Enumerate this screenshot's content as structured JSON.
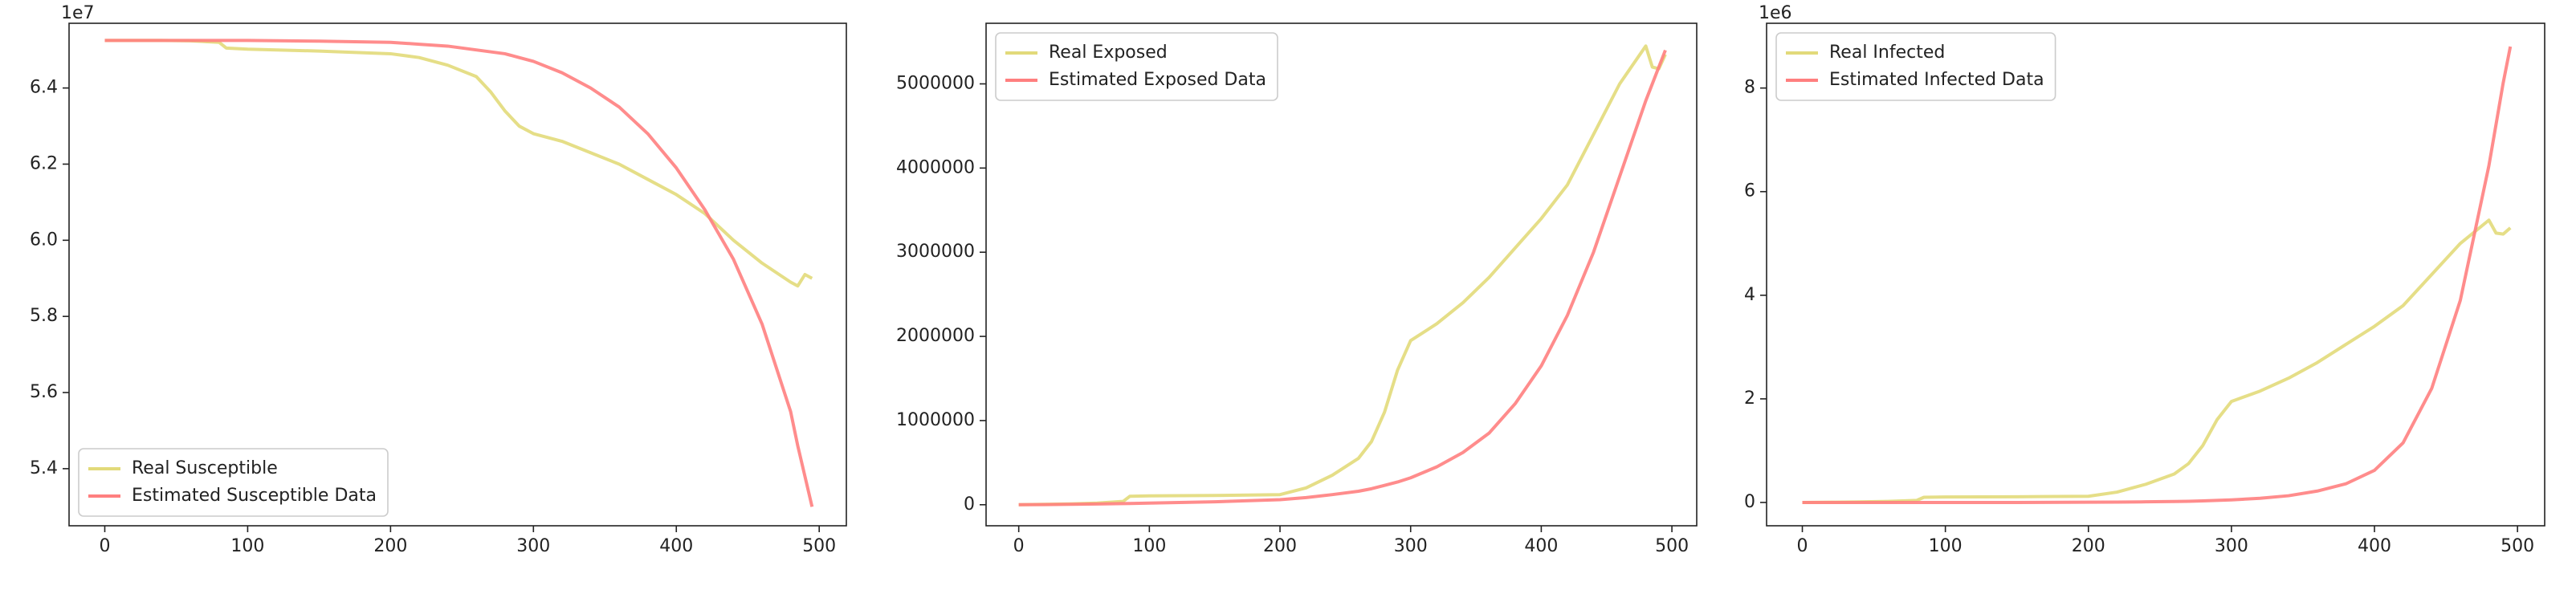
{
  "chart_data": [
    {
      "type": "line",
      "y_offset_label": "1e7",
      "x": [
        0,
        20,
        40,
        60,
        80,
        85,
        100,
        150,
        200,
        220,
        240,
        260,
        270,
        280,
        290,
        300,
        320,
        340,
        360,
        380,
        400,
        420,
        440,
        460,
        480,
        485,
        490,
        495
      ],
      "xlim": [
        -25,
        519
      ],
      "xticks": [
        0,
        100,
        200,
        300,
        400,
        500
      ],
      "ylim": [
        5.25,
        6.57
      ],
      "yticks": [
        {
          "value": 5.4,
          "label": "5.4"
        },
        {
          "value": 5.6,
          "label": "5.6"
        },
        {
          "value": 5.8,
          "label": "5.8"
        },
        {
          "value": 6.0,
          "label": "6.0"
        },
        {
          "value": 6.2,
          "label": "6.2"
        },
        {
          "value": 6.4,
          "label": "6.4"
        }
      ],
      "legend": "lower left",
      "series": [
        {
          "name": "Real Susceptible",
          "color": "#e2da7a",
          "values": [
            6.525,
            6.525,
            6.525,
            6.524,
            6.52,
            6.505,
            6.502,
            6.497,
            6.49,
            6.48,
            6.46,
            6.43,
            6.39,
            6.34,
            6.3,
            6.28,
            6.26,
            6.23,
            6.2,
            6.16,
            6.12,
            6.07,
            6.0,
            5.94,
            5.89,
            5.88,
            5.91,
            5.9
          ]
        },
        {
          "name": "Estimated Susceptible Data",
          "color": "#ff7f7f",
          "values": [
            6.525,
            6.525,
            6.525,
            6.525,
            6.525,
            6.525,
            6.525,
            6.523,
            6.52,
            6.515,
            6.51,
            6.5,
            6.495,
            6.49,
            6.48,
            6.47,
            6.44,
            6.4,
            6.35,
            6.28,
            6.19,
            6.08,
            5.95,
            5.78,
            5.55,
            5.46,
            5.38,
            5.3
          ]
        }
      ]
    },
    {
      "type": "line",
      "x": [
        0,
        20,
        40,
        60,
        80,
        85,
        100,
        150,
        200,
        220,
        240,
        260,
        270,
        280,
        290,
        300,
        320,
        340,
        360,
        380,
        400,
        420,
        440,
        460,
        480,
        485,
        490,
        495
      ],
      "xlim": [
        -25,
        519
      ],
      "xticks": [
        0,
        100,
        200,
        300,
        400,
        500
      ],
      "ylim": [
        -250000,
        5720000
      ],
      "yticks": [
        0,
        1000000,
        2000000,
        3000000,
        4000000,
        5000000
      ],
      "legend": "upper left",
      "series": [
        {
          "name": "Real Exposed",
          "color": "#e2da7a",
          "values": [
            0,
            5000,
            10000,
            20000,
            40000,
            100000,
            105000,
            110000,
            120000,
            200000,
            350000,
            550000,
            750000,
            1100000,
            1600000,
            1950000,
            2150000,
            2400000,
            2700000,
            3050000,
            3400000,
            3800000,
            4400000,
            5000000,
            5450000,
            5200000,
            5180000,
            5350000
          ]
        },
        {
          "name": "Estimated Exposed Data",
          "color": "#ff7f7f",
          "values": [
            0,
            2000,
            5000,
            9000,
            14000,
            15000,
            20000,
            35000,
            60000,
            85000,
            120000,
            160000,
            190000,
            230000,
            270000,
            320000,
            450000,
            620000,
            850000,
            1200000,
            1650000,
            2250000,
            3000000,
            3900000,
            4800000,
            5000000,
            5200000,
            5400000
          ]
        }
      ]
    },
    {
      "type": "line",
      "y_offset_label": "1e6",
      "x": [
        0,
        20,
        40,
        60,
        80,
        85,
        100,
        150,
        200,
        220,
        240,
        260,
        270,
        280,
        290,
        300,
        320,
        340,
        360,
        380,
        400,
        420,
        440,
        460,
        480,
        485,
        490,
        495
      ],
      "xlim": [
        -25,
        519
      ],
      "xticks": [
        0,
        100,
        200,
        300,
        400,
        500
      ],
      "ylim": [
        -0.45,
        9.25
      ],
      "yticks": [
        0,
        2,
        4,
        6,
        8
      ],
      "legend": "upper left",
      "series": [
        {
          "name": "Real Infected",
          "color": "#e2da7a",
          "values": [
            0,
            0.005,
            0.01,
            0.02,
            0.04,
            0.1,
            0.105,
            0.11,
            0.12,
            0.2,
            0.35,
            0.55,
            0.75,
            1.1,
            1.6,
            1.95,
            2.15,
            2.4,
            2.7,
            3.05,
            3.4,
            3.8,
            4.4,
            5.0,
            5.45,
            5.2,
            5.18,
            5.3
          ]
        },
        {
          "name": "Estimated Infected Data",
          "color": "#ff7f7f",
          "values": [
            0,
            0,
            0,
            0,
            0,
            0,
            0,
            0,
            0.005,
            0.008,
            0.012,
            0.018,
            0.022,
            0.03,
            0.04,
            0.05,
            0.08,
            0.13,
            0.22,
            0.36,
            0.62,
            1.15,
            2.2,
            3.9,
            6.5,
            7.3,
            8.1,
            8.8
          ]
        }
      ]
    }
  ]
}
